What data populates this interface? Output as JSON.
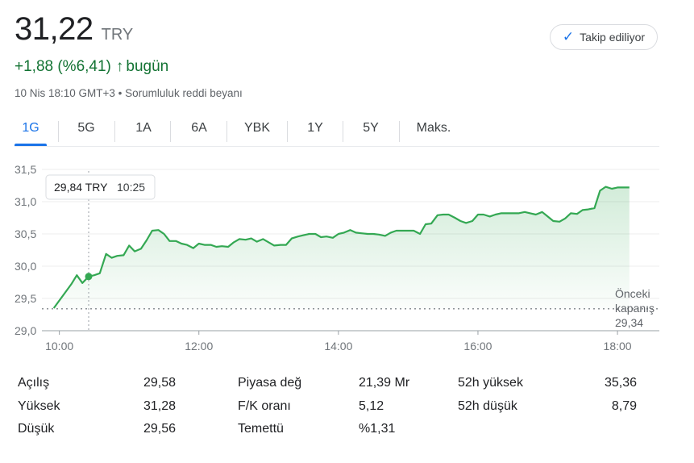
{
  "price": {
    "value": "31,22",
    "currency": "TRY"
  },
  "change": {
    "text": "+1,88 (%6,41)",
    "arrow": "↑",
    "period": "bugün",
    "color": "#137333"
  },
  "timestamp": "10 Nis 18:10 GMT+3 • Sorumluluk reddi beyanı",
  "follow_button": {
    "label": "Takip ediliyor",
    "icon": "check-icon"
  },
  "tabs": [
    {
      "label": "1G",
      "active": true
    },
    {
      "label": "5G"
    },
    {
      "label": "1A"
    },
    {
      "label": "6A"
    },
    {
      "label": "YBK"
    },
    {
      "label": "1Y"
    },
    {
      "label": "5Y"
    },
    {
      "label": "Maks."
    }
  ],
  "tooltip": {
    "price": "29,84 TRY",
    "time": "10:25"
  },
  "prev_close": {
    "line1": "Önceki",
    "line2": "kapanış",
    "value": "29,34"
  },
  "colors": {
    "accent": "#1a73e8",
    "up": "#137333",
    "line": "#34a853"
  },
  "chart_data": {
    "type": "area",
    "y_ticks": [
      "31,5",
      "31,0",
      "30,5",
      "30,0",
      "29,5",
      "29,0"
    ],
    "x_ticks": [
      "10:00",
      "12:00",
      "14:00",
      "16:00",
      "18:00"
    ],
    "ylim": [
      29.0,
      31.5
    ],
    "xlim": [
      9.75,
      18.6
    ],
    "grid": true,
    "previous_close": 29.34,
    "highlight": {
      "x": 10.42,
      "y": 29.84
    },
    "x": [
      9.92,
      10.17,
      10.25,
      10.33,
      10.42,
      10.5,
      10.58,
      10.67,
      10.75,
      10.83,
      10.92,
      11.0,
      11.08,
      11.17,
      11.25,
      11.33,
      11.42,
      11.5,
      11.58,
      11.67,
      11.75,
      11.83,
      11.92,
      12.0,
      12.08,
      12.17,
      12.25,
      12.33,
      12.42,
      12.5,
      12.58,
      12.67,
      12.75,
      12.83,
      12.92,
      13.0,
      13.08,
      13.17,
      13.25,
      13.33,
      13.42,
      13.5,
      13.58,
      13.67,
      13.75,
      13.83,
      13.92,
      14.0,
      14.08,
      14.17,
      14.25,
      14.33,
      14.42,
      14.5,
      14.58,
      14.67,
      14.75,
      14.83,
      14.92,
      15.0,
      15.08,
      15.17,
      15.25,
      15.33,
      15.42,
      15.5,
      15.58,
      15.67,
      15.75,
      15.83,
      15.92,
      16.0,
      16.08,
      16.17,
      16.25,
      16.33,
      16.42,
      16.5,
      16.58,
      16.67,
      16.75,
      16.83,
      16.92,
      17.0,
      17.08,
      17.17,
      17.25,
      17.33,
      17.42,
      17.5,
      17.58,
      17.67,
      17.75,
      17.83,
      17.92,
      18.0,
      18.08,
      18.17
    ],
    "y": [
      29.35,
      29.72,
      29.86,
      29.74,
      29.84,
      29.86,
      29.89,
      30.19,
      30.13,
      30.16,
      30.17,
      30.32,
      30.23,
      30.27,
      30.4,
      30.55,
      30.56,
      30.5,
      30.39,
      30.39,
      30.35,
      30.33,
      30.28,
      30.35,
      30.33,
      30.33,
      30.3,
      30.31,
      30.3,
      30.37,
      30.42,
      30.41,
      30.43,
      30.38,
      30.42,
      30.37,
      30.32,
      30.33,
      30.33,
      30.43,
      30.46,
      30.48,
      30.5,
      30.5,
      30.45,
      30.46,
      30.44,
      30.5,
      30.52,
      30.56,
      30.52,
      30.51,
      30.5,
      30.5,
      30.49,
      30.47,
      30.52,
      30.55,
      30.55,
      30.55,
      30.55,
      30.5,
      30.65,
      30.66,
      30.79,
      30.8,
      30.8,
      30.75,
      30.7,
      30.67,
      30.7,
      30.8,
      30.8,
      30.77,
      30.8,
      30.82,
      30.82,
      30.82,
      30.82,
      30.84,
      30.82,
      30.8,
      30.84,
      30.77,
      30.7,
      30.69,
      30.74,
      30.82,
      30.81,
      30.87,
      30.88,
      30.9,
      31.17,
      31.23,
      31.2,
      31.22,
      31.22,
      31.22
    ]
  },
  "stats": [
    {
      "label": "Açılış",
      "value": "29,58"
    },
    {
      "label": "Yüksek",
      "value": "31,28"
    },
    {
      "label": "Düşük",
      "value": "29,56"
    },
    {
      "label": "Piyasa değ",
      "value": "21,39 Mr"
    },
    {
      "label": "F/K oranı",
      "value": "5,12"
    },
    {
      "label": "Temettü",
      "value": "%1,31"
    },
    {
      "label": "52h yüksek",
      "value": "35,36"
    },
    {
      "label": "52h düşük",
      "value": "8,79"
    }
  ]
}
